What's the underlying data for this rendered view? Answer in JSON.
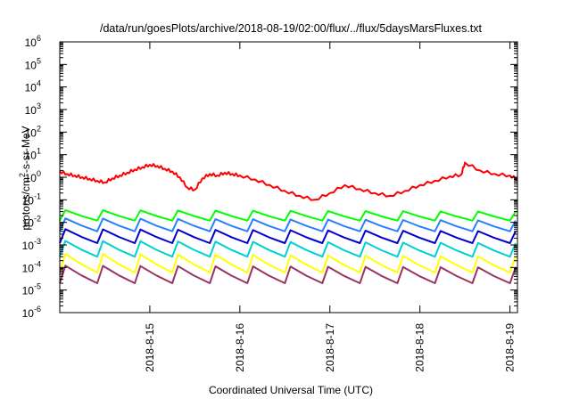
{
  "chart_data": {
    "type": "line",
    "title": "/data/run/goesPlots/archive/2018-08-19/02:00/flux/../flux/5daysMarsFluxes.txt",
    "xlabel": "Coordinated Universal Time (UTC)",
    "ylabel": {
      "prefix": "protons/cm",
      "sup": "2",
      "suffix": "-s-sr-MeV"
    },
    "yscale": "log",
    "ylim": [
      1e-06,
      1000000.0
    ],
    "y_ticks": [
      {
        "exp": "-6",
        "base": "10"
      },
      {
        "exp": "-5",
        "base": "10"
      },
      {
        "exp": "-4",
        "base": "10"
      },
      {
        "exp": "-3",
        "base": "10"
      },
      {
        "exp": "-2",
        "base": "10"
      },
      {
        "exp": "-1",
        "base": "10"
      },
      {
        "exp": "0",
        "base": "10"
      },
      {
        "exp": "1",
        "base": "10"
      },
      {
        "exp": "2",
        "base": "10"
      },
      {
        "exp": "3",
        "base": "10"
      },
      {
        "exp": "4",
        "base": "10"
      },
      {
        "exp": "5",
        "base": "10"
      },
      {
        "exp": "6",
        "base": "10"
      }
    ],
    "x_ticks": [
      "2018-8-15",
      "2018-8-16",
      "2018-8-17",
      "2018-8-18",
      "2018-8-19"
    ],
    "x_tick_values": [
      "2018-08-15",
      "2018-08-16",
      "2018-08-17",
      "2018-08-18",
      "2018-08-19"
    ],
    "xlim": [
      "2018-08-14 00:00",
      "2018-08-19 02:00"
    ],
    "grid": false,
    "series": [
      {
        "color": "#ff0000",
        "x": [
          "2018-08-14 00:00",
          "2018-08-14 02:00",
          "2018-08-14 04:00",
          "2018-08-14 06:00",
          "2018-08-14 08:00",
          "2018-08-14 10:00",
          "2018-08-14 12:00",
          "2018-08-14 14:00",
          "2018-08-14 16:00",
          "2018-08-14 18:00",
          "2018-08-14 20:00",
          "2018-08-14 22:00",
          "2018-08-15 00:00",
          "2018-08-15 02:00",
          "2018-08-15 04:00",
          "2018-08-15 06:00",
          "2018-08-15 08:00",
          "2018-08-15 10:00",
          "2018-08-15 12:00",
          "2018-08-15 14:00",
          "2018-08-15 16:00",
          "2018-08-15 18:00",
          "2018-08-15 20:00",
          "2018-08-15 22:00",
          "2018-08-16 00:00",
          "2018-08-16 04:00",
          "2018-08-16 08:00",
          "2018-08-16 12:00",
          "2018-08-16 16:00",
          "2018-08-16 20:00",
          "2018-08-17 00:00",
          "2018-08-17 04:00",
          "2018-08-17 08:00",
          "2018-08-17 12:00",
          "2018-08-17 16:00",
          "2018-08-17 20:00",
          "2018-08-18 00:00",
          "2018-08-18 04:00",
          "2018-08-18 08:00",
          "2018-08-18 11:00",
          "2018-08-18 12:00",
          "2018-08-18 16:00",
          "2018-08-18 20:00",
          "2018-08-19 00:00",
          "2018-08-19 02:00"
        ],
        "values": [
          1.8,
          1.4,
          1.2,
          1.0,
          0.85,
          0.7,
          0.6,
          0.9,
          1.2,
          1.6,
          2.2,
          2.8,
          3.6,
          3.2,
          2.4,
          1.8,
          1.0,
          0.35,
          0.28,
          0.9,
          1.4,
          1.2,
          1.6,
          1.4,
          1.2,
          0.8,
          0.45,
          0.25,
          0.15,
          0.1,
          0.2,
          0.45,
          0.3,
          0.2,
          0.15,
          0.25,
          0.45,
          0.7,
          1.1,
          1.3,
          4.5,
          2.0,
          1.4,
          1.2,
          0.8
        ]
      },
      {
        "color": "#00ff00",
        "x": [
          "2018-08-14 00:00",
          "2018-08-19 02:00"
        ],
        "values_low": [
          0.012,
          0.012
        ],
        "values_high": [
          0.035,
          0.03
        ]
      },
      {
        "color": "#2a7fff",
        "x": [
          "2018-08-14 00:00",
          "2018-08-19 02:00"
        ],
        "values_low": [
          0.004,
          0.004
        ],
        "values_high": [
          0.015,
          0.012
        ]
      },
      {
        "color": "#0000cc",
        "x": [
          "2018-08-14 00:00",
          "2018-08-19 02:00"
        ],
        "values_low": [
          0.0012,
          0.0012
        ],
        "values_high": [
          0.005,
          0.004
        ]
      },
      {
        "color": "#00d0d0",
        "x": [
          "2018-08-14 00:00",
          "2018-08-19 02:00"
        ],
        "values_low": [
          0.0003,
          0.0003
        ],
        "values_high": [
          0.0015,
          0.0012
        ]
      },
      {
        "color": "#ffff00",
        "x": [
          "2018-08-14 00:00",
          "2018-08-19 02:00"
        ],
        "values_low": [
          6e-05,
          6e-05
        ],
        "values_high": [
          0.0004,
          0.0003
        ]
      },
      {
        "color": "#993366",
        "x": [
          "2018-08-14 00:00",
          "2018-08-19 02:00"
        ],
        "values_low": [
          2e-05,
          2e-05
        ],
        "values_high": [
          0.00012,
          0.0001
        ]
      }
    ]
  }
}
